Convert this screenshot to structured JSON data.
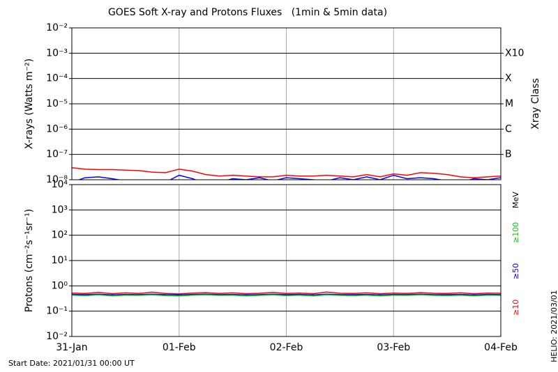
{
  "chart_data": [
    {
      "type": "line",
      "title": "GOES Soft X-ray and Protons Fluxes   (1min & 5min data)",
      "y_label": "X-rays (Watts m⁻²)",
      "y2_label": "Xray Class",
      "log_y": true,
      "x": [
        0,
        3,
        6,
        9,
        12,
        15,
        18,
        21,
        24,
        27,
        30,
        33,
        36,
        39,
        42,
        45,
        48,
        51,
        54,
        57,
        60,
        63,
        66,
        69,
        72,
        75,
        78,
        81,
        84,
        87,
        90,
        93,
        96
      ],
      "xlim": [
        0,
        96
      ],
      "xticks": [
        0,
        24,
        48,
        72,
        96
      ],
      "ylim": [
        1e-08,
        0.01
      ],
      "yticks": [
        {
          "value": 1e-08,
          "label": "10⁻⁸"
        },
        {
          "value": 1e-07,
          "label": "10⁻⁷"
        },
        {
          "value": 1e-06,
          "label": "10⁻⁶"
        },
        {
          "value": 1e-05,
          "label": "10⁻⁵"
        },
        {
          "value": 0.0001,
          "label": "10⁻⁴"
        },
        {
          "value": 0.001,
          "label": "10⁻³"
        },
        {
          "value": 0.01,
          "label": "10⁻²"
        }
      ],
      "y2lim": [
        1e-08,
        0.01
      ],
      "y2ticks": [
        {
          "value": 1e-07,
          "label": "B"
        },
        {
          "value": 1e-06,
          "label": "C"
        },
        {
          "value": 1e-05,
          "label": "M"
        },
        {
          "value": 0.0001,
          "label": "X"
        },
        {
          "value": 0.001,
          "label": "X10"
        }
      ],
      "grid": true,
      "series": [
        {
          "color": "#ff0000",
          "values": [
            3e-08,
            2.6e-08,
            2.5e-08,
            2.5e-08,
            2.4e-08,
            2.3e-08,
            2e-08,
            1.9e-08,
            2.6e-08,
            2.2e-08,
            1.6e-08,
            1.4e-08,
            1.5e-08,
            1.4e-08,
            1.3e-08,
            1.3e-08,
            1.5e-08,
            1.4e-08,
            1.4e-08,
            1.5e-08,
            1.4e-08,
            1.3e-08,
            1.6e-08,
            1.3e-08,
            1.7e-08,
            1.5e-08,
            1.9e-08,
            1.8e-08,
            1.6e-08,
            1.3e-08,
            1.2e-08,
            1.3e-08,
            1.4e-08
          ]
        },
        {
          "color": "#0000ff",
          "values": [
            8e-09,
            1.2e-08,
            1.3e-08,
            1.1e-08,
            9e-09,
            7e-09,
            7e-09,
            8e-09,
            1.5e-08,
            1.1e-08,
            7e-09,
            8e-09,
            1.1e-08,
            1e-08,
            1.2e-08,
            9e-09,
            1.2e-08,
            1.1e-08,
            1e-08,
            9e-09,
            1.2e-08,
            1e-08,
            1.3e-08,
            1e-08,
            1.5e-08,
            1.1e-08,
            1.2e-08,
            1.1e-08,
            9e-09,
            8e-09,
            1.1e-08,
            1e-08,
            1.2e-08
          ]
        }
      ]
    },
    {
      "type": "line",
      "y_label": "Protons (cm⁻²s⁻¹sr⁻¹)",
      "log_y": true,
      "legend_title": "MeV",
      "x": [
        0,
        3,
        6,
        9,
        12,
        15,
        18,
        21,
        24,
        27,
        30,
        33,
        36,
        39,
        42,
        45,
        48,
        51,
        54,
        57,
        60,
        63,
        66,
        69,
        72,
        75,
        78,
        81,
        84,
        87,
        90,
        93,
        96
      ],
      "xlim": [
        0,
        96
      ],
      "xticks": [
        {
          "value": 0,
          "label": "31-Jan"
        },
        {
          "value": 24,
          "label": "01-Feb"
        },
        {
          "value": 48,
          "label": "02-Feb"
        },
        {
          "value": 72,
          "label": "03-Feb"
        },
        {
          "value": 96,
          "label": "04-Feb"
        }
      ],
      "ylim": [
        0.01,
        10000
      ],
      "yticks": [
        {
          "value": 0.01,
          "label": "10⁻²"
        },
        {
          "value": 0.1,
          "label": "10⁻¹"
        },
        {
          "value": 1,
          "label": "10⁰"
        },
        {
          "value": 10,
          "label": "10¹"
        },
        {
          "value": 100,
          "label": "10²"
        },
        {
          "value": 1000,
          "label": "10³"
        },
        {
          "value": 10000,
          "label": "10⁴"
        }
      ],
      "threshold": 10,
      "grid": true,
      "series": [
        {
          "name": "≥10",
          "color": "#ff0000",
          "values": [
            0.52,
            0.5,
            0.55,
            0.49,
            0.53,
            0.5,
            0.56,
            0.5,
            0.48,
            0.52,
            0.54,
            0.5,
            0.53,
            0.49,
            0.51,
            0.55,
            0.5,
            0.52,
            0.49,
            0.57,
            0.51,
            0.5,
            0.53,
            0.49,
            0.52,
            0.5,
            0.54,
            0.51,
            0.5,
            0.53,
            0.49,
            0.52,
            0.51
          ]
        },
        {
          "name": "≥50",
          "color": "#0000ff",
          "values": [
            0.46,
            0.45,
            0.47,
            0.44,
            0.46,
            0.45,
            0.47,
            0.45,
            0.44,
            0.46,
            0.47,
            0.45,
            0.46,
            0.44,
            0.45,
            0.47,
            0.45,
            0.46,
            0.44,
            0.47,
            0.45,
            0.45,
            0.46,
            0.44,
            0.46,
            0.45,
            0.47,
            0.45,
            0.45,
            0.46,
            0.44,
            0.46,
            0.45
          ]
        },
        {
          "name": "≥100",
          "color": "#00cc00",
          "values": [
            0.43,
            0.41,
            0.44,
            0.4,
            0.43,
            0.42,
            0.44,
            0.41,
            0.4,
            0.43,
            0.44,
            0.42,
            0.43,
            0.4,
            0.42,
            0.44,
            0.41,
            0.43,
            0.4,
            0.44,
            0.42,
            0.41,
            0.43,
            0.4,
            0.43,
            0.42,
            0.44,
            0.42,
            0.41,
            0.43,
            0.4,
            0.43,
            0.42
          ]
        }
      ]
    }
  ],
  "footer": {
    "start_date": "Start Date: 2021/01/31 00:00 UT",
    "stamp": "HELIO: 2021/03/01"
  }
}
